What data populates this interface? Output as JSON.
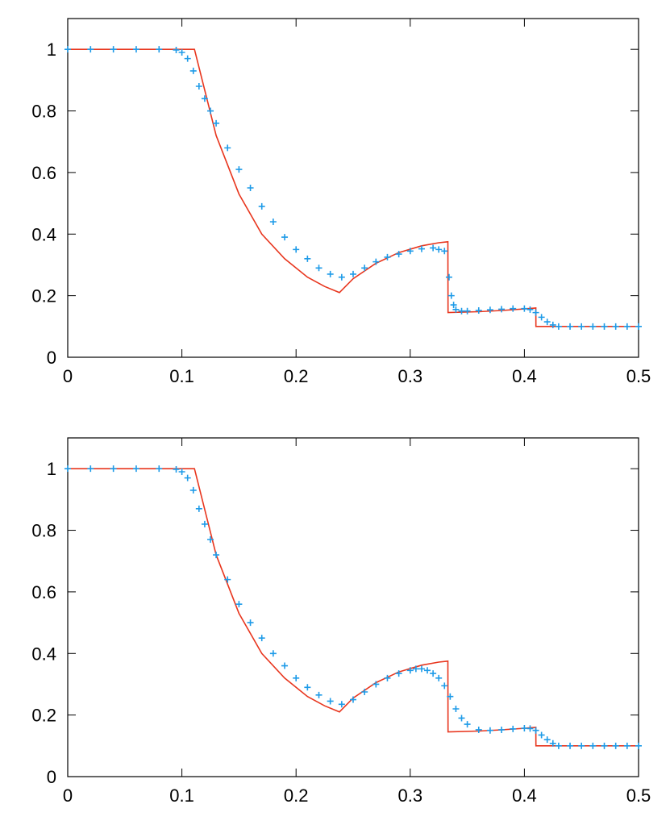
{
  "chart_data": [
    {
      "type": "scatter",
      "xlim": [
        0,
        0.5
      ],
      "ylim": [
        0,
        1.1
      ],
      "x_ticks": [
        "0",
        "0.1",
        "0.2",
        "0.3",
        "0.4",
        "0.5"
      ],
      "y_ticks": [
        "0",
        "0.2",
        "0.4",
        "0.6",
        "0.8",
        "1"
      ],
      "grid": false,
      "colors": {
        "exact": "#e8361e",
        "numerical": "#1e9be8"
      },
      "series": [
        {
          "style": "line",
          "x": [
            0,
            0.111,
            0.13,
            0.15,
            0.17,
            0.19,
            0.21,
            0.225,
            0.238,
            0.25,
            0.27,
            0.29,
            0.31,
            0.325,
            0.333,
            0.3331,
            0.36,
            0.38,
            0.4,
            0.41,
            0.4101,
            0.5
          ],
          "y": [
            1,
            1,
            0.72,
            0.53,
            0.4,
            0.32,
            0.26,
            0.23,
            0.21,
            0.255,
            0.305,
            0.34,
            0.362,
            0.372,
            0.375,
            0.145,
            0.148,
            0.152,
            0.157,
            0.16,
            0.1,
            0.1
          ]
        },
        {
          "style": "markers",
          "x": [
            0,
            0.02,
            0.04,
            0.06,
            0.08,
            0.095,
            0.1,
            0.105,
            0.11,
            0.115,
            0.12,
            0.125,
            0.13,
            0.14,
            0.15,
            0.16,
            0.17,
            0.18,
            0.19,
            0.2,
            0.21,
            0.22,
            0.23,
            0.24,
            0.25,
            0.26,
            0.27,
            0.28,
            0.29,
            0.3,
            0.31,
            0.32,
            0.325,
            0.33,
            0.334,
            0.336,
            0.338,
            0.34,
            0.345,
            0.35,
            0.36,
            0.37,
            0.38,
            0.39,
            0.4,
            0.405,
            0.41,
            0.415,
            0.42,
            0.425,
            0.43,
            0.44,
            0.45,
            0.46,
            0.47,
            0.48,
            0.49,
            0.5
          ],
          "y": [
            1,
            1,
            1,
            1,
            1,
            0.998,
            0.99,
            0.97,
            0.93,
            0.88,
            0.84,
            0.8,
            0.76,
            0.68,
            0.61,
            0.55,
            0.49,
            0.44,
            0.39,
            0.35,
            0.32,
            0.29,
            0.27,
            0.26,
            0.27,
            0.29,
            0.31,
            0.325,
            0.335,
            0.345,
            0.352,
            0.355,
            0.35,
            0.345,
            0.26,
            0.2,
            0.17,
            0.155,
            0.15,
            0.15,
            0.152,
            0.154,
            0.156,
            0.158,
            0.158,
            0.155,
            0.145,
            0.13,
            0.115,
            0.105,
            0.1,
            0.1,
            0.1,
            0.1,
            0.1,
            0.1,
            0.1,
            0.1
          ]
        }
      ]
    },
    {
      "type": "scatter",
      "xlim": [
        0,
        0.5
      ],
      "ylim": [
        0,
        1.1
      ],
      "x_ticks": [
        "0",
        "0.1",
        "0.2",
        "0.3",
        "0.4",
        "0.5"
      ],
      "y_ticks": [
        "0",
        "0.2",
        "0.4",
        "0.6",
        "0.8",
        "1"
      ],
      "grid": false,
      "colors": {
        "exact": "#e8361e",
        "numerical": "#1e9be8"
      },
      "series": [
        {
          "style": "line",
          "x": [
            0,
            0.111,
            0.13,
            0.15,
            0.17,
            0.19,
            0.21,
            0.225,
            0.238,
            0.25,
            0.27,
            0.29,
            0.31,
            0.325,
            0.333,
            0.3331,
            0.36,
            0.38,
            0.4,
            0.41,
            0.4101,
            0.5
          ],
          "y": [
            1,
            1,
            0.72,
            0.53,
            0.4,
            0.32,
            0.26,
            0.23,
            0.21,
            0.255,
            0.305,
            0.34,
            0.362,
            0.372,
            0.375,
            0.145,
            0.148,
            0.152,
            0.157,
            0.16,
            0.1,
            0.1
          ]
        },
        {
          "style": "markers",
          "x": [
            0,
            0.02,
            0.04,
            0.06,
            0.08,
            0.095,
            0.1,
            0.105,
            0.11,
            0.115,
            0.12,
            0.125,
            0.13,
            0.14,
            0.15,
            0.16,
            0.17,
            0.18,
            0.19,
            0.2,
            0.21,
            0.22,
            0.23,
            0.24,
            0.25,
            0.26,
            0.27,
            0.28,
            0.29,
            0.3,
            0.305,
            0.31,
            0.315,
            0.32,
            0.325,
            0.33,
            0.335,
            0.34,
            0.345,
            0.35,
            0.36,
            0.37,
            0.38,
            0.39,
            0.4,
            0.405,
            0.41,
            0.415,
            0.42,
            0.425,
            0.43,
            0.44,
            0.45,
            0.46,
            0.47,
            0.48,
            0.49,
            0.5
          ],
          "y": [
            1,
            1,
            1,
            1,
            1,
            0.998,
            0.99,
            0.97,
            0.93,
            0.87,
            0.82,
            0.77,
            0.72,
            0.64,
            0.56,
            0.5,
            0.45,
            0.4,
            0.36,
            0.32,
            0.29,
            0.265,
            0.245,
            0.235,
            0.25,
            0.275,
            0.3,
            0.32,
            0.335,
            0.345,
            0.35,
            0.35,
            0.345,
            0.335,
            0.32,
            0.295,
            0.26,
            0.22,
            0.19,
            0.17,
            0.152,
            0.15,
            0.152,
            0.155,
            0.157,
            0.156,
            0.15,
            0.135,
            0.12,
            0.108,
            0.1,
            0.1,
            0.1,
            0.1,
            0.1,
            0.1,
            0.1,
            0.1
          ]
        }
      ]
    }
  ]
}
